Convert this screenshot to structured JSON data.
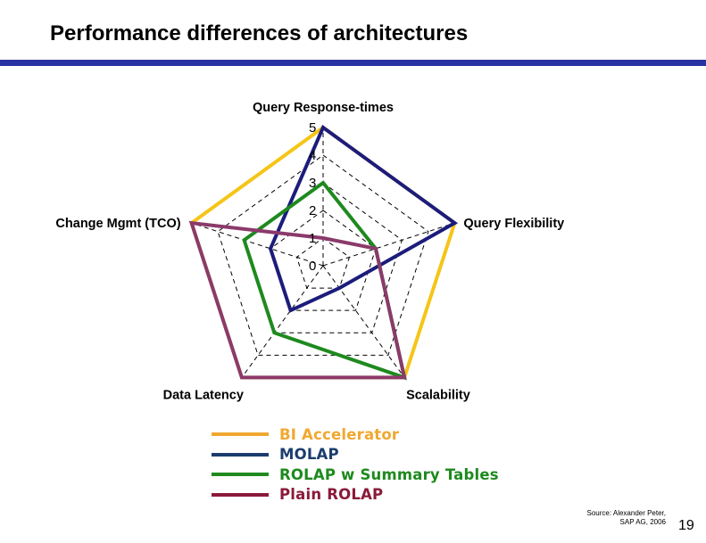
{
  "slide": {
    "title": "Performance differences of architectures",
    "source_note": "Source: Alexander Peter, SAP AG, 2006",
    "page_number": "19"
  },
  "colors": {
    "title_rule": "#2a33a3",
    "grid": "#000000"
  },
  "chart_data": {
    "type": "radar",
    "title": "",
    "axes": [
      "Query Response-times",
      "Query Flexibility",
      "Scalability",
      "Data Latency",
      "Change Mgmt (TCO)"
    ],
    "scale": {
      "min": 0,
      "max": 5,
      "ticks": [
        "0",
        "1",
        "2",
        "3",
        "4",
        "5"
      ]
    },
    "grid": "dashed",
    "legend_position": "bottom",
    "series": [
      {
        "name": "BI Accelerator",
        "color": "#f5c518",
        "legend_color": "#f0a830",
        "values": [
          5,
          5,
          5,
          5,
          5
        ]
      },
      {
        "name": "MOLAP",
        "color": "#1c1c7c",
        "legend_color": "#1b3d6e",
        "values": [
          5,
          5,
          1,
          2,
          2
        ]
      },
      {
        "name": "ROLAP w Summary Tables",
        "color": "#1e8a1e",
        "legend_color": "#1e8a1e",
        "values": [
          3,
          2,
          5,
          3,
          3
        ]
      },
      {
        "name": "Plain ROLAP",
        "color": "#8b3a6b",
        "legend_color": "#8b1a3a",
        "values": [
          1,
          2,
          5,
          5,
          5
        ]
      }
    ]
  }
}
